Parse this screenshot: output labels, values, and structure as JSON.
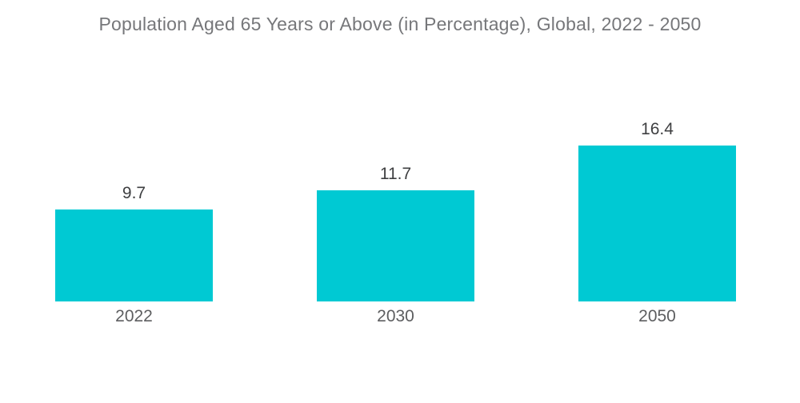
{
  "chart_data": {
    "type": "bar",
    "title": "Population Aged 65 Years or Above (in Percentage), Global, 2022 - 2050",
    "categories": [
      "2022",
      "2030",
      "2050"
    ],
    "values": [
      9.7,
      11.7,
      16.4
    ],
    "series": [
      {
        "name": "Population aged 65 years or above (%)",
        "values": [
          9.7,
          11.7,
          16.4
        ]
      }
    ],
    "xlabel": "",
    "ylabel": "",
    "ylim": [
      0,
      18
    ],
    "grid": false,
    "legend": false,
    "axes_visible": false,
    "value_labels_position": "above-bars"
  },
  "colors": {
    "bar": "#00C9D3",
    "title_text": "#76777A",
    "value_label": "#3E3F41",
    "category_label": "#5D5E60",
    "background": "#FFFFFF"
  }
}
